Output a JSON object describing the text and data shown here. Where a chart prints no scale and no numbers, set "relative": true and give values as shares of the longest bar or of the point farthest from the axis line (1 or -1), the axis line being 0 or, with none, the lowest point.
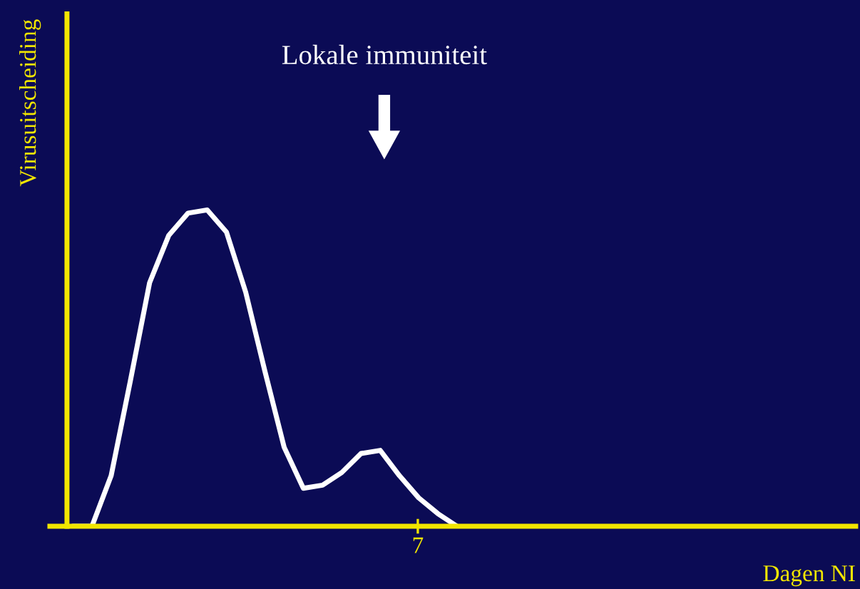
{
  "chart_data": {
    "type": "line",
    "relative": true,
    "categories": [
      null,
      null,
      null,
      null,
      null,
      null,
      null,
      null,
      null,
      null,
      null,
      null,
      null,
      null,
      null,
      null,
      null,
      null,
      null,
      null,
      null,
      null,
      null,
      null,
      null,
      null,
      null,
      null,
      null,
      null,
      null,
      null,
      null,
      null,
      null,
      null,
      null,
      null,
      null,
      null,
      null
    ],
    "series": [
      {
        "color": "#ffffff",
        "values": [
          0,
          0,
          0.16,
          0.46,
          0.77,
          0.92,
          0.99,
          1,
          0.93,
          0.74,
          0.49,
          0.25,
          0.12,
          0.13,
          0.17,
          0.23,
          0.24,
          0.16,
          0.09,
          0.04,
          0,
          null,
          null,
          null,
          null,
          null,
          null,
          null,
          null,
          null,
          null,
          null,
          null,
          null,
          null,
          null,
          null,
          null,
          null,
          null,
          null
        ]
      }
    ],
    "annotations": [
      "Lokale immuniteit",
      "Virusuitscheiding",
      "Dagen NI",
      "7"
    ],
    "legend": false,
    "marker": "none",
    "line_style": "solid"
  }
}
